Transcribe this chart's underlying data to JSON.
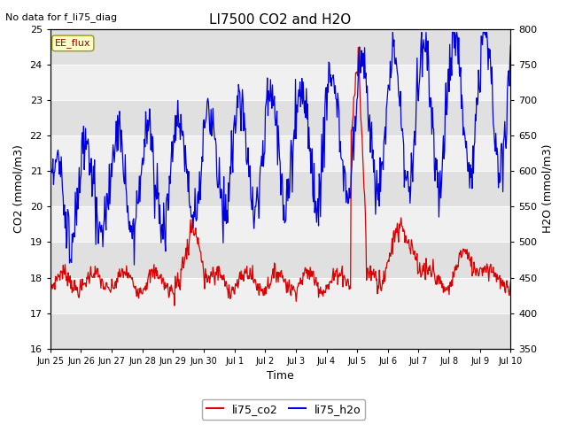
{
  "title": "LI7500 CO2 and H2O",
  "subtitle": "No data for f_li75_diag",
  "xlabel": "Time",
  "ylabel_left": "CO2 (mmol/m3)",
  "ylabel_right": "H2O (mmol/m3)",
  "ylim_left": [
    16.0,
    25.0
  ],
  "ylim_right": [
    350,
    800
  ],
  "yticks_left": [
    16.0,
    17.0,
    18.0,
    19.0,
    20.0,
    21.0,
    22.0,
    23.0,
    24.0,
    25.0
  ],
  "yticks_right": [
    350,
    400,
    450,
    500,
    550,
    600,
    650,
    700,
    750,
    800
  ],
  "xtick_labels": [
    "Jun 25",
    "Jun 26",
    "Jun 27",
    "Jun 28",
    "Jun 29",
    "Jun 30",
    "Jul 1",
    "Jul 2",
    "Jul 3",
    "Jul 4",
    "Jul 5",
    "Jul 6",
    "Jul 7",
    "Jul 8",
    "Jul 9",
    "Jul 10"
  ],
  "legend_label1": "li75_co2",
  "legend_label2": "li75_h2o",
  "color_co2": "#dd0000",
  "color_h2o": "#0000dd",
  "annotation_text": "EE_flux",
  "band_color_dark": "#e0e0e0",
  "band_color_light": "#f0f0f0",
  "figure_bg": "#ffffff"
}
